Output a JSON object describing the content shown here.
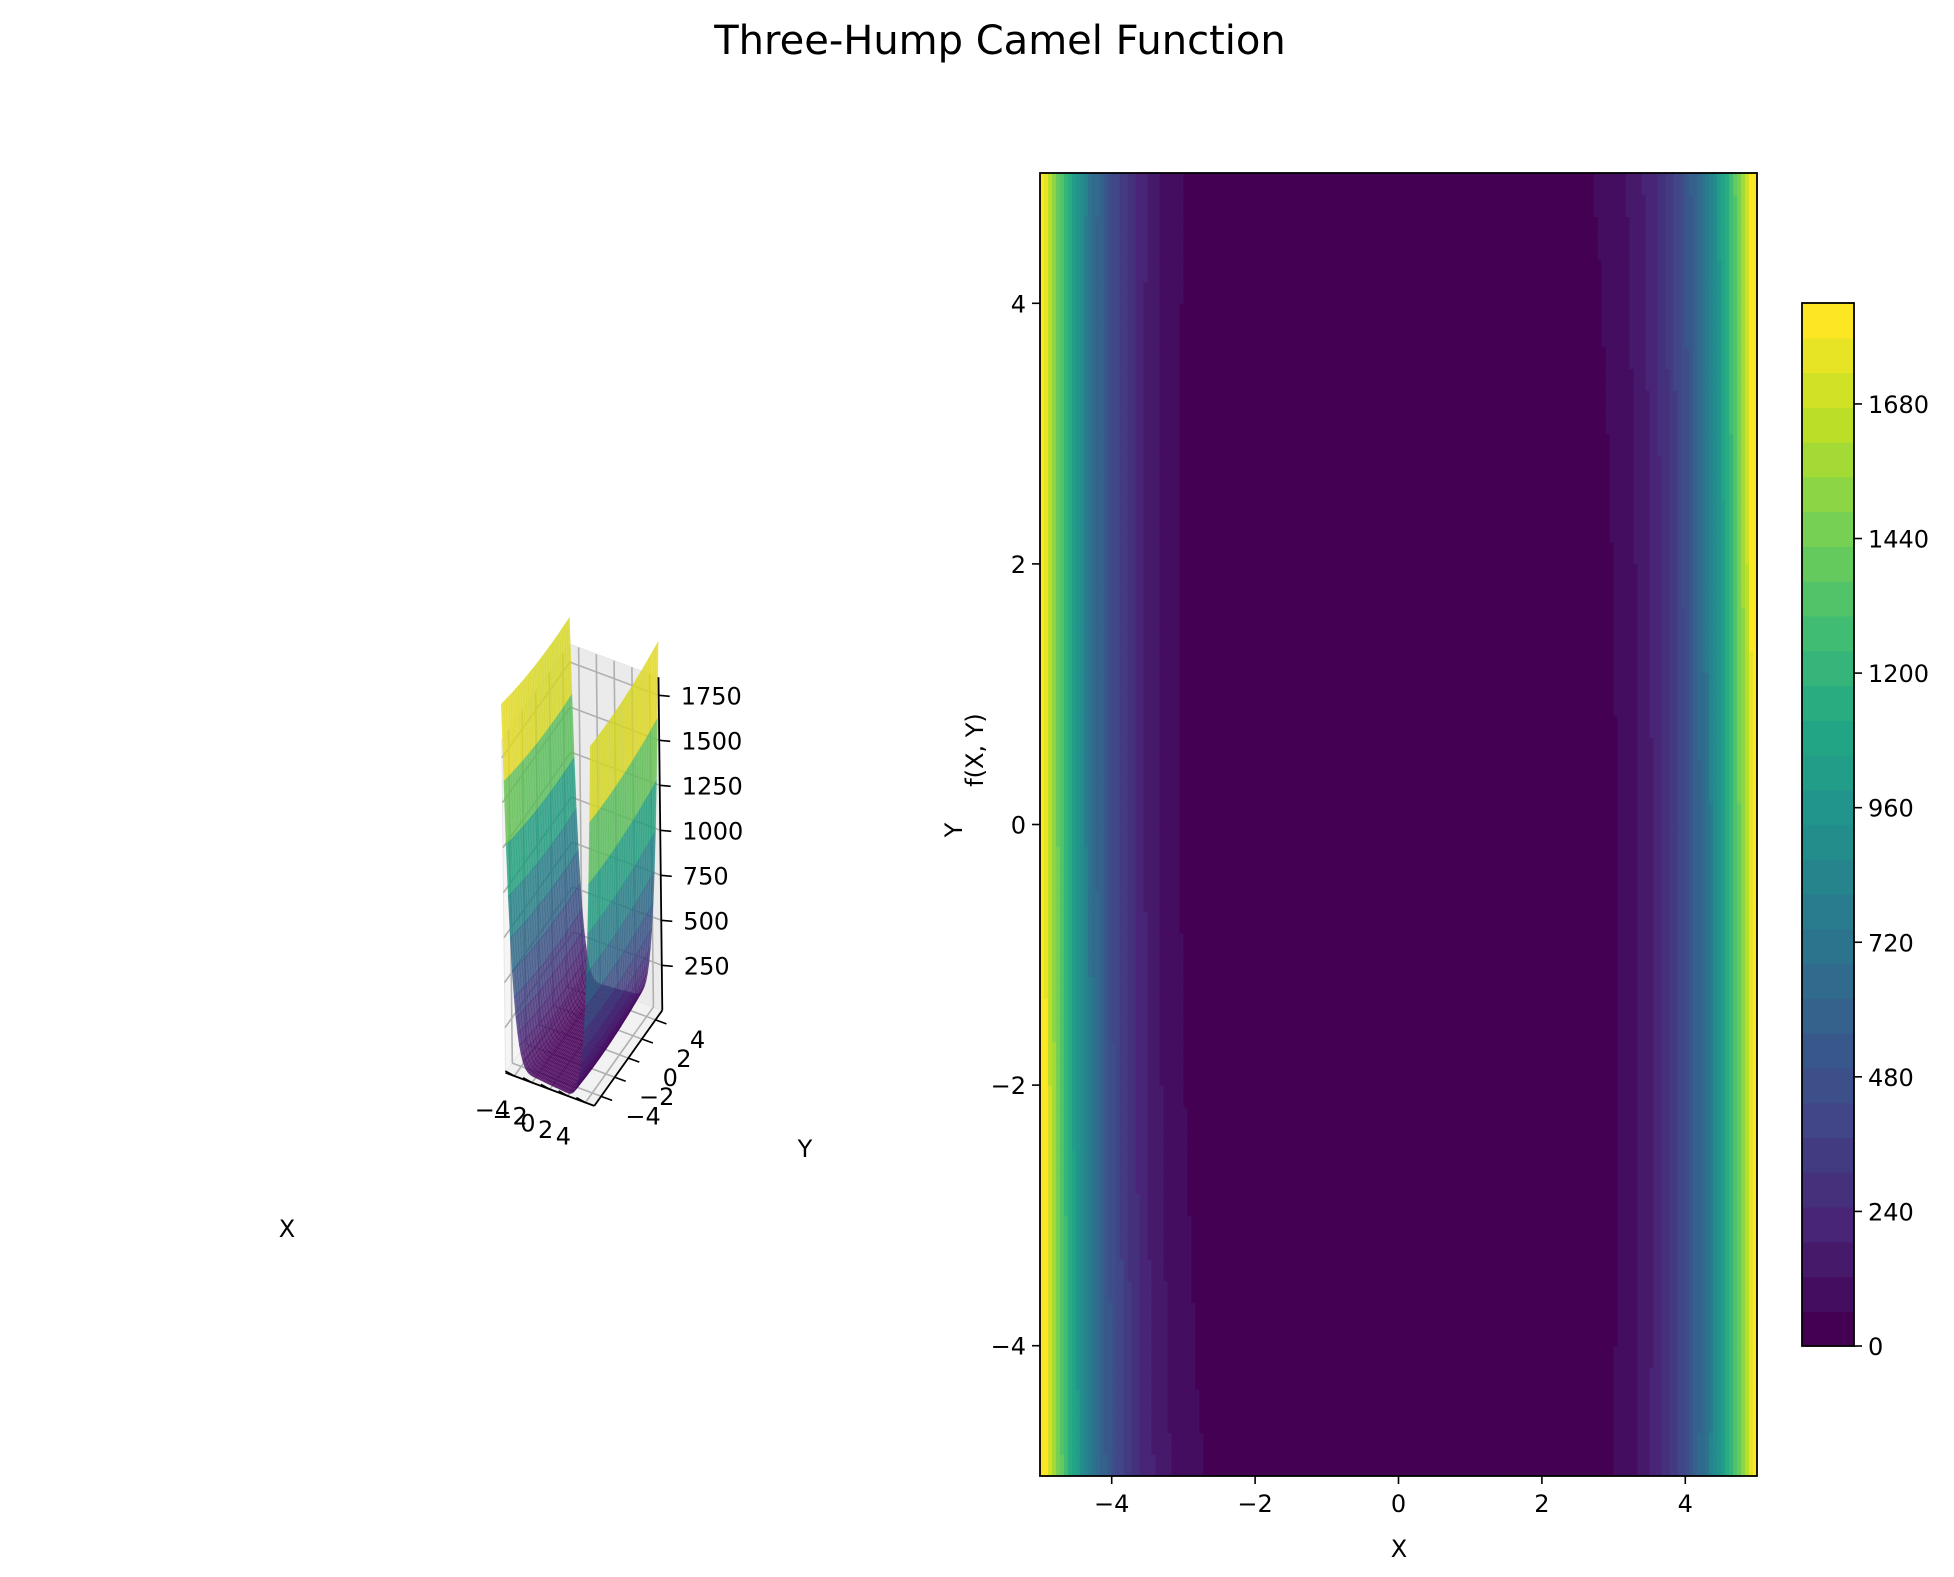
{
  "figure": {
    "title": "Three-Hump Camel Function"
  },
  "chart_data": [
    {
      "type": "surface3d",
      "function": "f(x, y) = 2x^2 - 1.05x^4 + x^6/6 + x*y + y^2",
      "xlabel": "X",
      "ylabel": "Y",
      "zlabel": "f(X, Y)",
      "xlim": [
        -5,
        5
      ],
      "ylim": [
        -5,
        5
      ],
      "zlim": [
        0,
        1850
      ],
      "x_ticks": [
        -4,
        -2,
        0,
        2,
        4
      ],
      "y_ticks": [
        -4,
        -2,
        0,
        2,
        4
      ],
      "z_ticks": [
        250,
        500,
        750,
        1000,
        1250,
        1500,
        1750
      ],
      "x_tick_labels": [
        "−4",
        "−2",
        "0",
        "2",
        "4"
      ],
      "y_tick_labels": [
        "−4",
        "−2",
        "0",
        "2",
        "4"
      ],
      "z_tick_labels": [
        "250",
        "500",
        "750",
        "1000",
        "1250",
        "1500",
        "1750"
      ],
      "colormap": "viridis",
      "alpha": 0.8,
      "grid": true,
      "legend": "none"
    },
    {
      "type": "contourf",
      "function": "f(x, y) = 2x^2 - 1.05x^4 + x^6/6 + x*y + y^2",
      "xlabel": "X",
      "ylabel": "",
      "xlim": [
        -5,
        5
      ],
      "ylim": [
        -5,
        5
      ],
      "x_ticks": [
        -4,
        -2,
        0,
        2,
        4
      ],
      "y_ticks": [
        -4,
        -2,
        0,
        2,
        4
      ],
      "x_tick_labels": [
        "−4",
        "−2",
        "0",
        "2",
        "4"
      ],
      "y_tick_labels": [
        "−4",
        "−2",
        "0",
        "2",
        "4"
      ],
      "levels": 30,
      "level_range": [
        0,
        1860
      ],
      "colormap": "viridis",
      "colorbar": {
        "ticks": [
          0,
          240,
          480,
          720,
          960,
          1200,
          1440,
          1680
        ],
        "tick_labels": [
          "0",
          "240",
          "480",
          "720",
          "960",
          "1200",
          "1440",
          "1680"
        ],
        "placement": "right"
      },
      "grid": false,
      "legend": "none"
    }
  ]
}
